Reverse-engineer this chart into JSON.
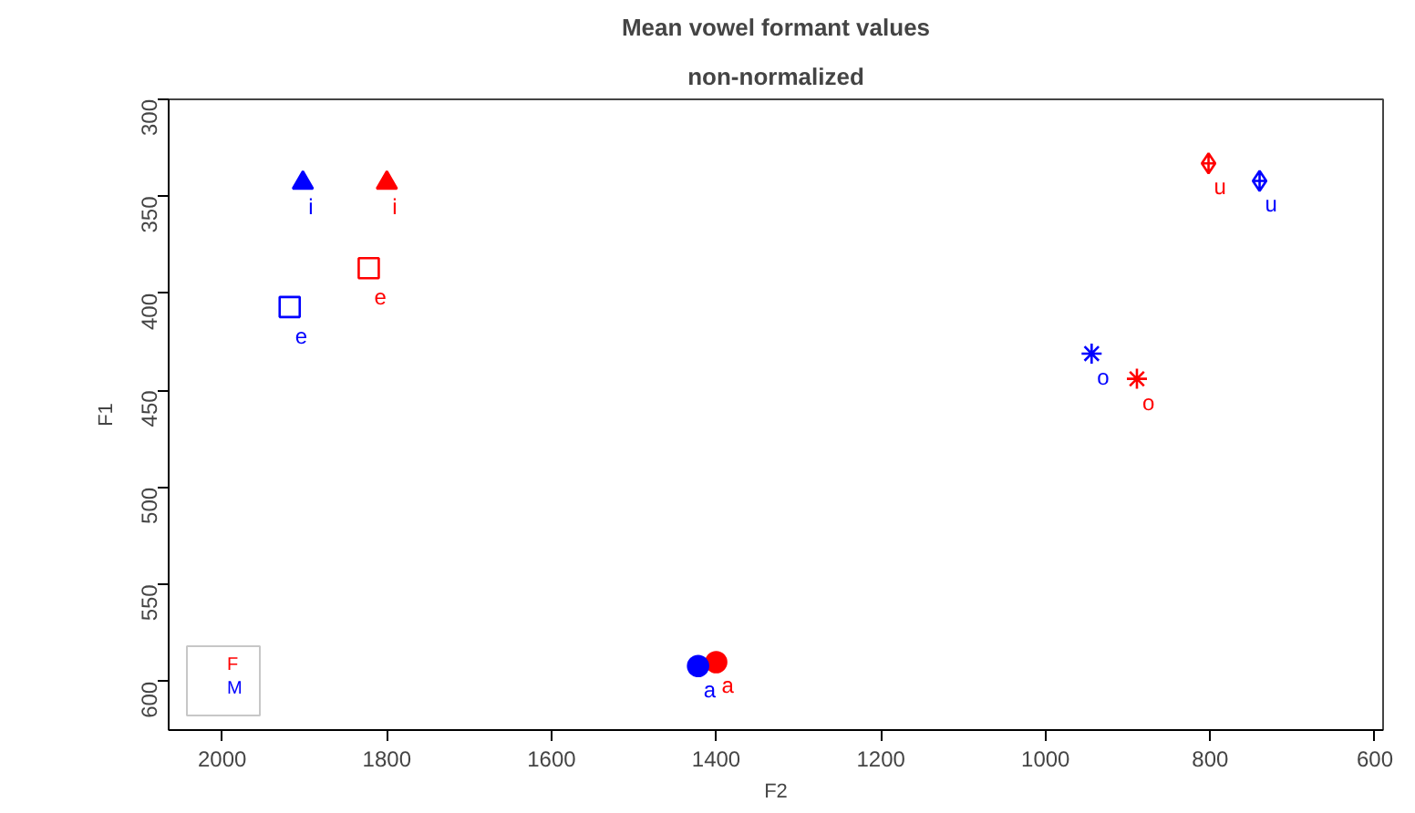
{
  "chart_data": {
    "type": "scatter",
    "title": "Mean vowel formant values",
    "subtitle": "non-normalized",
    "xlabel": "F2",
    "ylabel": "F1",
    "xlim": [
      2065,
      590
    ],
    "ylim": [
      625,
      300
    ],
    "xticks": [
      2000,
      1800,
      1600,
      1400,
      1200,
      1000,
      800,
      600
    ],
    "yticks": [
      300,
      350,
      400,
      450,
      500,
      550,
      600
    ],
    "grid": false,
    "legend": "bottom left",
    "series": [
      {
        "name": "F",
        "color": "#ff0000",
        "x": [
          1800,
          1822,
          1400,
          889,
          802
        ],
        "values": [
          343,
          387,
          590,
          444,
          333
        ],
        "value_labels": [
          "i",
          "e",
          "a",
          "o",
          "u"
        ],
        "marker": [
          "triangle",
          "square",
          "circle",
          "star",
          "diamond"
        ]
      },
      {
        "name": "M",
        "color": "#0000ff",
        "x": [
          1902,
          1918,
          1422,
          944,
          740
        ],
        "values": [
          343,
          407,
          592,
          431,
          342
        ],
        "value_labels": [
          "i",
          "e",
          "a",
          "o",
          "u"
        ],
        "marker": [
          "triangle",
          "square",
          "circle",
          "star",
          "diamond"
        ]
      }
    ]
  }
}
